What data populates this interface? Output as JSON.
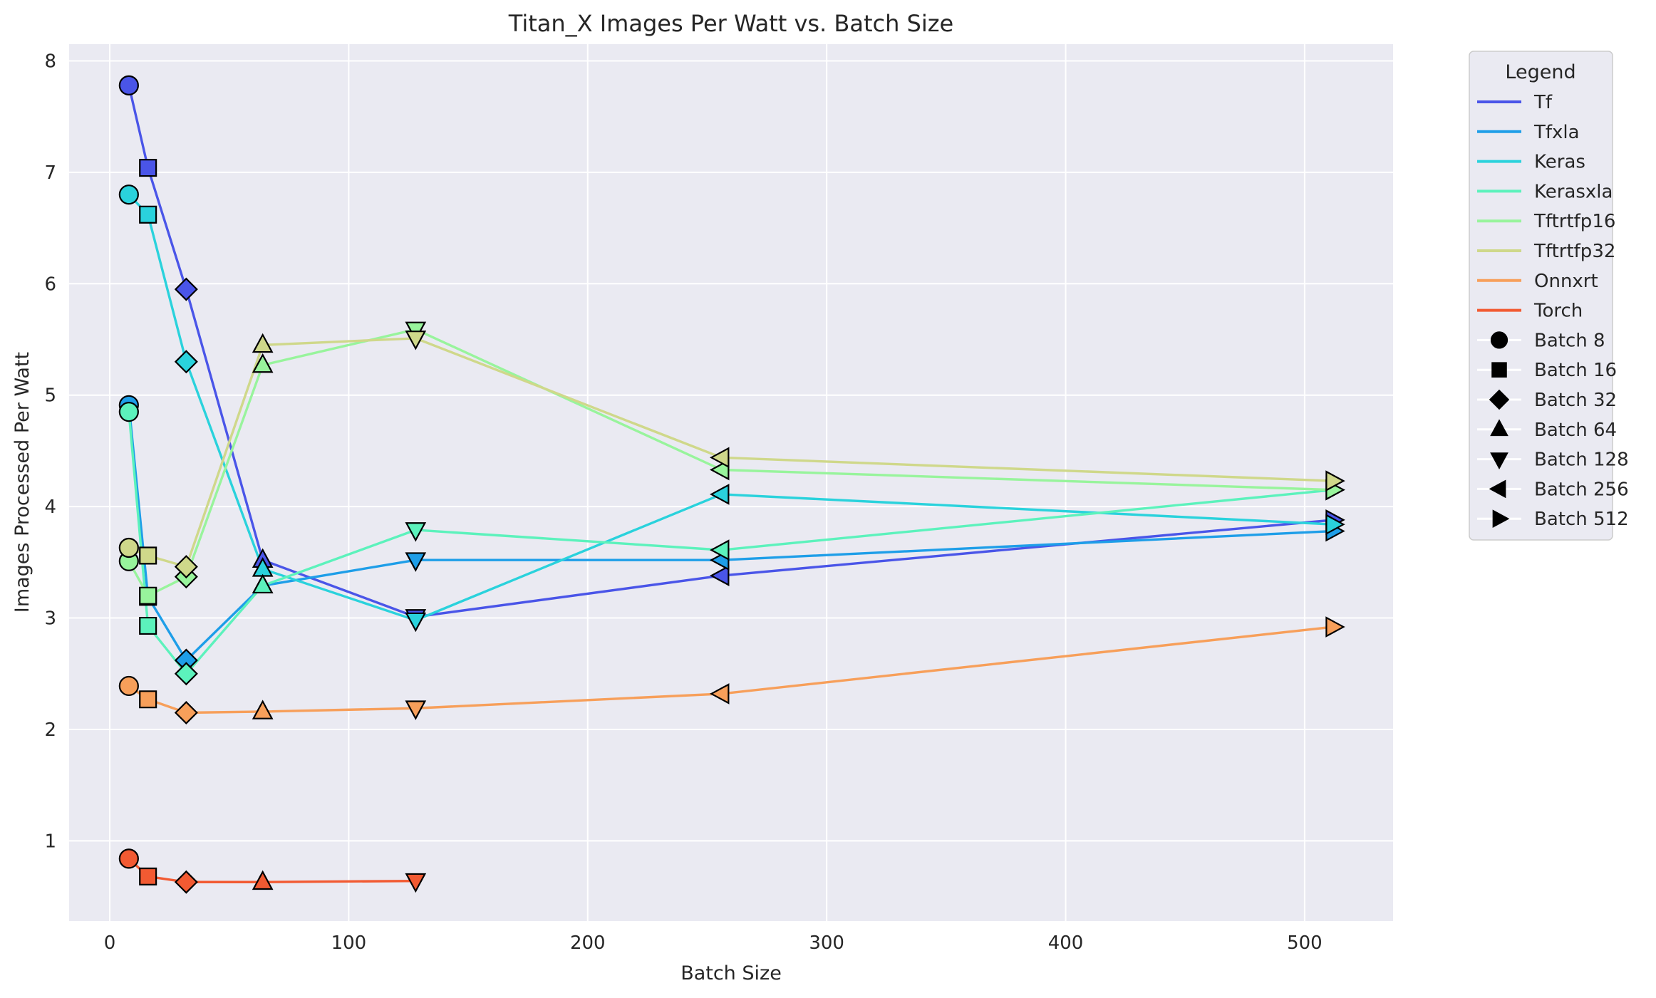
{
  "chart_data": {
    "type": "line",
    "title": "Titan_X Images Per Watt vs. Batch Size",
    "xlabel": "Batch Size",
    "ylabel": "Images Processed Per Watt",
    "xlim": [
      -17,
      537
    ],
    "ylim": [
      0.28,
      8.15
    ],
    "xticks": [
      0,
      100,
      200,
      300,
      400,
      500
    ],
    "yticks": [
      1,
      2,
      3,
      4,
      5,
      6,
      7,
      8
    ],
    "grid": true,
    "background": "#eaeaf2",
    "legend": {
      "title": "Legend",
      "placement": "outside-right"
    },
    "series": [
      {
        "name": "Tf",
        "color": "#4a55e8",
        "x": [
          8,
          16,
          32,
          64,
          128,
          256,
          512
        ],
        "y": [
          7.78,
          7.04,
          5.95,
          3.52,
          3.01,
          3.38,
          3.88
        ]
      },
      {
        "name": "Tfxla",
        "color": "#1e9ee8",
        "x": [
          8,
          16,
          32,
          64,
          128,
          256,
          512
        ],
        "y": [
          4.91,
          3.19,
          2.62,
          3.29,
          3.52,
          3.52,
          3.78
        ]
      },
      {
        "name": "Keras",
        "color": "#2ad2dc",
        "x": [
          8,
          16,
          32,
          64,
          128,
          256,
          512
        ],
        "y": [
          6.8,
          6.62,
          5.3,
          3.44,
          2.98,
          4.11,
          3.84
        ]
      },
      {
        "name": "Kerasxla",
        "color": "#5cf2bc",
        "x": [
          8,
          16,
          32,
          64,
          128,
          256,
          512
        ],
        "y": [
          4.85,
          2.93,
          2.5,
          3.29,
          3.79,
          3.61,
          4.15
        ]
      },
      {
        "name": "Tftrtfp16",
        "color": "#98f49c",
        "x": [
          8,
          16,
          32,
          64,
          128,
          256,
          512
        ],
        "y": [
          3.51,
          3.2,
          3.37,
          5.27,
          5.59,
          4.33,
          4.15
        ]
      },
      {
        "name": "Tftrtfp32",
        "color": "#cfd88a",
        "x": [
          8,
          16,
          32,
          64,
          128,
          256,
          512
        ],
        "y": [
          3.63,
          3.56,
          3.46,
          5.45,
          5.51,
          4.44,
          4.23
        ]
      },
      {
        "name": "Onnxrt",
        "color": "#f79f5a",
        "x": [
          8,
          16,
          32,
          64,
          128,
          256,
          512
        ],
        "y": [
          2.39,
          2.27,
          2.15,
          2.16,
          2.19,
          2.32,
          2.92
        ]
      },
      {
        "name": "Torch",
        "color": "#f25a32",
        "x": [
          8,
          16,
          32,
          64,
          128
        ],
        "y": [
          0.84,
          0.68,
          0.63,
          0.63,
          0.64
        ]
      }
    ],
    "markers": [
      {
        "batch": 8,
        "label": "Batch 8",
        "shape": "circle"
      },
      {
        "batch": 16,
        "label": "Batch 16",
        "shape": "square"
      },
      {
        "batch": 32,
        "label": "Batch 32",
        "shape": "diamond"
      },
      {
        "batch": 64,
        "label": "Batch 64",
        "shape": "triangle-up"
      },
      {
        "batch": 128,
        "label": "Batch 128",
        "shape": "triangle-down"
      },
      {
        "batch": 256,
        "label": "Batch 256",
        "shape": "triangle-left"
      },
      {
        "batch": 512,
        "label": "Batch 512",
        "shape": "triangle-right"
      }
    ]
  }
}
